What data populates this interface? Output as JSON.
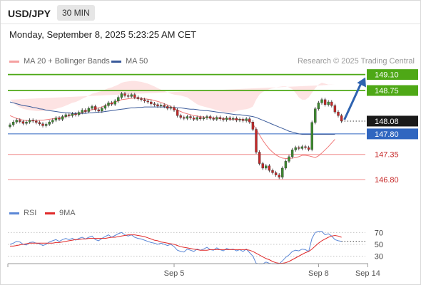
{
  "header": {
    "symbol": "USD/JPY",
    "timeframe": "30 MIN"
  },
  "timestamp": "Monday, September 8, 2025 5:23:25 AM CET",
  "legend": {
    "ma20_label": "MA 20 + Bollinger Bands",
    "ma50_label": "MA 50",
    "credit": "Research © 2025 Trading Central"
  },
  "rsi_legend": {
    "rsi_label": "RSI",
    "ma_label": "9MA"
  },
  "colors": {
    "resistance": "#4ea816",
    "support": "#3066c0",
    "minor_level": "#f08c8c",
    "bollinger_fill": "#fde3e3",
    "ma20": "#f07878",
    "ma50": "#3a5a9a",
    "candle_up": "#3c8a2e",
    "candle_down": "#c62828",
    "arrow": "#2e63b0",
    "rsi_line": "#5b87d6",
    "rsi_ma": "#e02a2a"
  },
  "chart_data": [
    {
      "type": "candlestick",
      "title": "USD/JPY 30 MIN",
      "ylim": [
        146.55,
        149.25
      ],
      "x_ticks": [
        {
          "label": "Sep 5",
          "index": 50
        },
        {
          "label": "Sep 8",
          "index": 94
        },
        {
          "label": "Sep 14",
          "index": 109
        }
      ],
      "levels": [
        {
          "value": 149.1,
          "label": "149.10",
          "kind": "resistance"
        },
        {
          "value": 148.75,
          "label": "148.75",
          "kind": "resistance"
        },
        {
          "value": 148.08,
          "label": "148.08",
          "kind": "last"
        },
        {
          "value": 147.8,
          "label": "147.80",
          "kind": "support"
        },
        {
          "value": 147.35,
          "label": "147.35",
          "kind": "minor"
        },
        {
          "value": 146.8,
          "label": "146.80",
          "kind": "minor"
        }
      ],
      "close": [
        148.0,
        148.06,
        148.1,
        148.07,
        148.03,
        148.06,
        148.1,
        148.08,
        148.05,
        148.02,
        147.98,
        148.01,
        148.06,
        148.1,
        148.15,
        148.12,
        148.18,
        148.22,
        148.2,
        148.24,
        148.22,
        148.27,
        148.32,
        148.29,
        148.36,
        148.4,
        148.33,
        148.3,
        148.36,
        148.42,
        148.48,
        148.45,
        148.52,
        148.6,
        148.68,
        148.64,
        148.62,
        148.66,
        148.6,
        148.57,
        148.55,
        148.52,
        148.5,
        148.46,
        148.44,
        148.41,
        148.43,
        148.4,
        148.36,
        148.38,
        148.32,
        148.2,
        148.16,
        148.14,
        148.18,
        148.15,
        148.12,
        148.16,
        148.13,
        148.15,
        148.18,
        148.14,
        148.12,
        148.16,
        148.13,
        148.11,
        148.15,
        148.12,
        148.14,
        148.1,
        148.12,
        148.09,
        148.13,
        148.06,
        147.9,
        147.4,
        147.15,
        147.05,
        147.1,
        147.0,
        146.95,
        146.9,
        146.85,
        147.05,
        147.2,
        147.3,
        147.45,
        147.5,
        147.48,
        147.52,
        147.5,
        147.46,
        148.05,
        148.35,
        148.48,
        148.55,
        148.44,
        148.5,
        148.42,
        148.28,
        148.2,
        148.08
      ],
      "bollinger": {
        "upper": [
          148.55,
          148.48,
          148.42,
          148.38,
          148.35,
          148.33,
          148.32,
          148.31,
          148.3,
          148.3,
          148.3,
          148.31,
          148.32,
          148.33,
          148.35,
          148.37,
          148.39,
          148.42,
          148.45,
          148.48,
          148.5,
          148.53,
          148.57,
          148.6,
          148.64,
          148.68,
          148.7,
          148.72,
          148.74,
          148.77,
          148.8,
          148.82,
          148.85,
          148.88,
          148.92,
          148.94,
          148.95,
          148.96,
          148.96,
          148.95,
          148.94,
          148.92,
          148.9,
          148.87,
          148.84,
          148.8,
          148.77,
          148.74,
          148.71,
          148.68,
          148.66,
          148.65,
          148.64,
          148.62,
          148.6,
          148.55,
          148.5,
          148.45,
          148.42,
          148.4,
          148.38,
          148.36,
          148.34,
          148.32,
          148.3,
          148.28,
          148.27,
          148.27,
          148.28,
          148.3,
          148.32,
          148.33,
          148.34,
          148.36,
          148.4,
          148.55,
          148.66,
          148.72,
          148.75,
          148.78,
          148.8,
          148.82,
          148.83,
          148.84,
          148.84,
          148.82,
          148.78,
          148.7,
          148.6,
          148.55,
          148.55,
          148.6,
          148.7,
          148.8,
          148.88,
          148.92,
          148.9,
          148.88,
          148.88,
          148.88
        ],
        "lower": [
          147.85,
          147.82,
          147.8,
          147.78,
          147.78,
          147.79,
          147.81,
          147.83,
          147.85,
          147.86,
          147.87,
          147.88,
          147.89,
          147.9,
          147.91,
          147.92,
          147.93,
          147.94,
          147.95,
          147.96,
          147.97,
          147.98,
          147.99,
          148.0,
          148.01,
          148.02,
          148.03,
          148.05,
          148.07,
          148.09,
          148.11,
          148.13,
          148.15,
          148.17,
          148.18,
          148.19,
          148.2,
          148.21,
          148.22,
          148.23,
          148.24,
          148.24,
          148.24,
          148.23,
          148.22,
          148.2,
          148.18,
          148.16,
          148.14,
          148.12,
          148.06,
          148.0,
          147.96,
          147.94,
          147.93,
          147.93,
          147.94,
          147.95,
          147.96,
          147.97,
          147.97,
          147.98,
          147.98,
          147.98,
          147.98,
          147.98,
          147.98,
          147.97,
          147.96,
          147.95,
          147.94,
          147.93,
          147.92,
          147.88,
          147.75,
          147.4,
          147.1,
          146.9,
          146.75,
          146.62,
          146.55,
          146.52,
          146.52,
          146.54,
          146.58,
          146.65,
          146.74,
          146.84,
          146.9,
          146.95,
          146.93,
          146.85,
          146.72,
          146.62,
          146.55,
          146.52,
          146.55,
          146.62,
          146.7,
          146.78
        ],
        "ma20": [
          148.2,
          148.17,
          148.14,
          148.12,
          148.1,
          148.09,
          148.09,
          148.09,
          148.09,
          148.1,
          148.1,
          148.11,
          148.12,
          148.13,
          148.14,
          148.15,
          148.16,
          148.18,
          148.2,
          148.22,
          148.23,
          148.25,
          148.27,
          148.29,
          148.31,
          148.33,
          148.35,
          148.37,
          148.39,
          148.42,
          148.45,
          148.48,
          148.5,
          148.52,
          148.55,
          148.56,
          148.57,
          148.58,
          148.58,
          148.58,
          148.58,
          148.57,
          148.56,
          148.55,
          148.53,
          148.51,
          148.49,
          148.46,
          148.43,
          148.4,
          148.36,
          148.32,
          148.29,
          148.26,
          148.24,
          148.22,
          148.2,
          148.19,
          148.18,
          148.17,
          148.16,
          148.16,
          148.15,
          148.15,
          148.14,
          148.14,
          148.13,
          148.12,
          148.12,
          148.12,
          148.12,
          148.11,
          148.1,
          148.08,
          148.02,
          147.9,
          147.78,
          147.66,
          147.56,
          147.47,
          147.4,
          147.34,
          147.3,
          147.27,
          147.26,
          147.26,
          147.27,
          147.28,
          147.3,
          147.33,
          147.33,
          147.32,
          147.3,
          147.28,
          147.32,
          147.38,
          147.45,
          147.52,
          147.6,
          147.68
        ]
      },
      "ma50": [
        148.5,
        148.48,
        148.46,
        148.44,
        148.42,
        148.41,
        148.4,
        148.38,
        148.37,
        148.35,
        148.34,
        148.32,
        148.31,
        148.3,
        148.29,
        148.28,
        148.27,
        148.26,
        148.26,
        148.25,
        148.25,
        148.25,
        148.25,
        148.25,
        148.26,
        148.26,
        148.27,
        148.28,
        148.28,
        148.29,
        148.3,
        148.31,
        148.32,
        148.33,
        148.34,
        148.35,
        148.36,
        148.37,
        148.37,
        148.38,
        148.38,
        148.39,
        148.39,
        148.39,
        148.39,
        148.39,
        148.39,
        148.39,
        148.38,
        148.38,
        148.38,
        148.37,
        148.37,
        148.36,
        148.35,
        148.34,
        148.34,
        148.33,
        148.32,
        148.31,
        148.31,
        148.3,
        148.29,
        148.28,
        148.27,
        148.26,
        148.25,
        148.24,
        148.23,
        148.22,
        148.22,
        148.21,
        148.2,
        148.19,
        148.18,
        148.16,
        148.13,
        148.1,
        148.07,
        148.04,
        148.01,
        147.98,
        147.95,
        147.92,
        147.89,
        147.86,
        147.84,
        147.82,
        147.8,
        147.79,
        147.79,
        147.79,
        147.79,
        147.79,
        147.79,
        147.79,
        147.79,
        147.79,
        147.79,
        147.79
      ],
      "forecast_arrow": {
        "from": 148.08,
        "to": 149.1
      }
    },
    {
      "type": "line",
      "title": "RSI",
      "ylim": [
        15,
        80
      ],
      "y_ticks": [
        70,
        50,
        30
      ],
      "series": [
        {
          "name": "RSI",
          "values": [
            50,
            52,
            55,
            54,
            50,
            49,
            53,
            54,
            52,
            51,
            48,
            50,
            54,
            56,
            58,
            55,
            58,
            60,
            58,
            60,
            57,
            60,
            62,
            59,
            62,
            64,
            58,
            56,
            60,
            63,
            66,
            62,
            65,
            68,
            70,
            66,
            64,
            66,
            62,
            60,
            59,
            57,
            55,
            53,
            52,
            50,
            52,
            50,
            48,
            50,
            46,
            40,
            38,
            37,
            42,
            40,
            38,
            42,
            40,
            42,
            45,
            41,
            40,
            44,
            41,
            39,
            43,
            41,
            42,
            39,
            41,
            38,
            42,
            36,
            30,
            18,
            17,
            17,
            20,
            18,
            17,
            17,
            17,
            22,
            28,
            32,
            38,
            40,
            39,
            42,
            41,
            38,
            60,
            70,
            72,
            72,
            66,
            68,
            64,
            58,
            56,
            55
          ]
        },
        {
          "name": "9MA",
          "values": [
            47,
            47,
            48,
            49,
            50,
            51,
            52,
            52,
            52,
            52,
            52,
            52,
            52,
            52,
            53,
            53,
            54,
            55,
            56,
            57,
            58,
            58,
            59,
            59,
            60,
            60,
            60,
            60,
            60,
            60,
            61,
            62,
            62,
            63,
            64,
            65,
            66,
            66,
            66,
            65,
            64,
            63,
            61,
            59,
            57,
            56,
            54,
            53,
            52,
            51,
            50,
            48,
            46,
            45,
            44,
            43,
            42,
            41,
            40,
            40,
            40,
            41,
            41,
            41,
            41,
            41,
            41,
            41,
            41,
            41,
            41,
            41,
            41,
            40,
            38,
            35,
            32,
            29,
            26,
            24,
            21,
            19,
            18,
            18,
            19,
            21,
            24,
            27,
            30,
            33,
            36,
            38,
            42,
            47,
            52,
            56,
            59,
            62,
            64,
            65,
            64,
            62
          ]
        }
      ]
    }
  ]
}
